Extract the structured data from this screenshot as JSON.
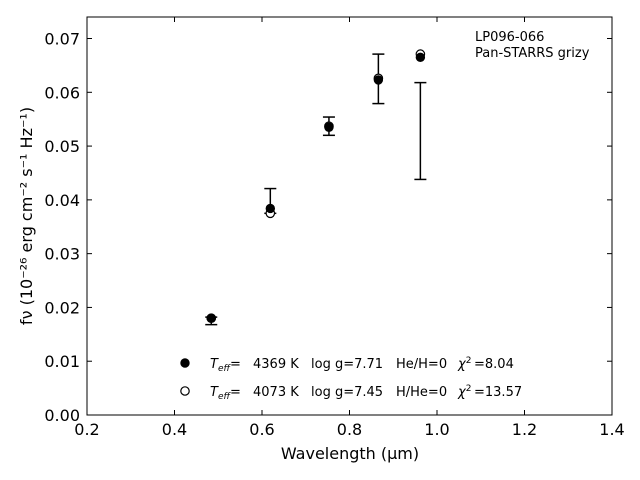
{
  "chart_data": {
    "type": "scatter",
    "title": "",
    "xlabel": "Wavelength (μm)",
    "ylabel": "fν (10⁻²⁶ erg cm⁻² s⁻¹ Hz⁻¹)",
    "xlim": [
      0.2,
      1.4
    ],
    "ylim": [
      0.0,
      0.074
    ],
    "x_ticks": [
      0.2,
      0.4,
      0.6,
      0.8,
      1.0,
      1.2,
      1.4
    ],
    "y_ticks": [
      0.0,
      0.01,
      0.02,
      0.03,
      0.04,
      0.05,
      0.06,
      0.07
    ],
    "x_tick_labels": [
      "0.2",
      "0.4",
      "0.6",
      "0.8",
      "1.0",
      "1.2",
      "1.4"
    ],
    "y_tick_labels": [
      "0.00",
      "0.01",
      "0.02",
      "0.03",
      "0.04",
      "0.05",
      "0.06",
      "0.07"
    ],
    "annotation": [
      "LP096-066",
      "Pan-STARRS grizy"
    ],
    "observed": {
      "x": [
        0.484,
        0.619,
        0.753,
        0.866,
        0.962
      ],
      "y": [
        0.0175,
        0.0398,
        0.0537,
        0.0625,
        0.0528
      ],
      "err": [
        0.0007,
        0.0023,
        0.0017,
        0.0046,
        0.009
      ]
    },
    "series": [
      {
        "marker": "filled-circle",
        "legend": {
          "teff": "4369 K",
          "logg": "log g=7.71",
          "comp": "He/H=0",
          "chi2": "=8.04"
        },
        "x": [
          0.484,
          0.619,
          0.753,
          0.866,
          0.962
        ],
        "y": [
          0.018,
          0.0384,
          0.0535,
          0.0623,
          0.0665
        ]
      },
      {
        "marker": "open-circle",
        "legend": {
          "teff": "4073 K",
          "logg": "log g=7.45",
          "comp": "H/He=0",
          "chi2": "=13.57"
        },
        "x": [
          0.484,
          0.619,
          0.753,
          0.866,
          0.962
        ],
        "y": [
          0.018,
          0.0375,
          0.0537,
          0.0626,
          0.0671
        ]
      }
    ]
  }
}
